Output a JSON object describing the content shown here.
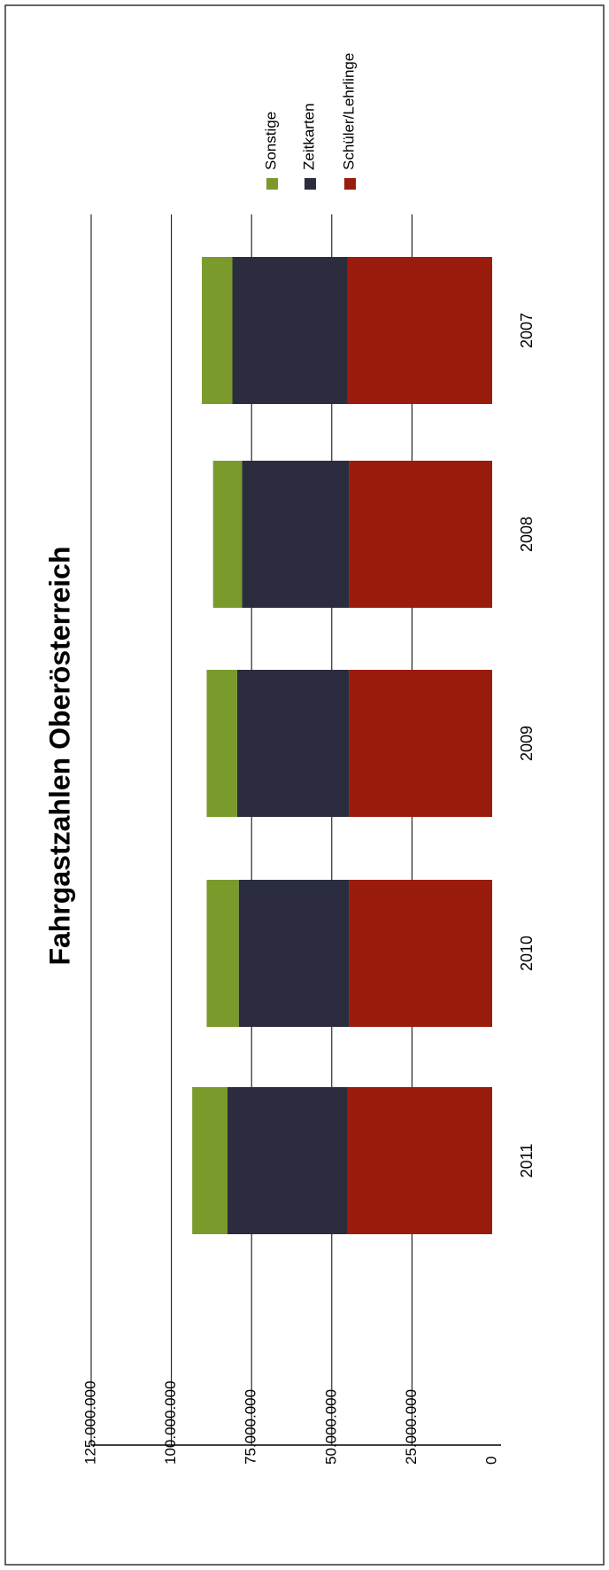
{
  "chart_data": {
    "type": "bar",
    "stacked": true,
    "title": "Fahrgastzahlen Oberösterreich",
    "xlabel": "",
    "ylabel": "",
    "categories": [
      "2007",
      "2008",
      "2009",
      "2010",
      "2011"
    ],
    "ylim": [
      0,
      125000000
    ],
    "yticks": [
      0,
      25000000,
      50000000,
      75000000,
      100000000,
      125000000
    ],
    "ytick_labels": [
      "0",
      "25.000.000",
      "50.000.000",
      "75.000.000",
      "100.000.000",
      "125.000.000"
    ],
    "grid": true,
    "legend_position": "top-right",
    "series": [
      {
        "name": "Schüler/Lehrlinge",
        "color": "#9a1c0c",
        "values": [
          45000000,
          44500000,
          44500000,
          44500000,
          45000000
        ]
      },
      {
        "name": "Zeitkarten",
        "color": "#2b2d3f",
        "values": [
          36000000,
          33500000,
          35000000,
          34500000,
          37500000
        ]
      },
      {
        "name": "Sonstige",
        "color": "#7a9a2c",
        "values": [
          9500000,
          9000000,
          9500000,
          10000000,
          11000000
        ]
      }
    ]
  }
}
